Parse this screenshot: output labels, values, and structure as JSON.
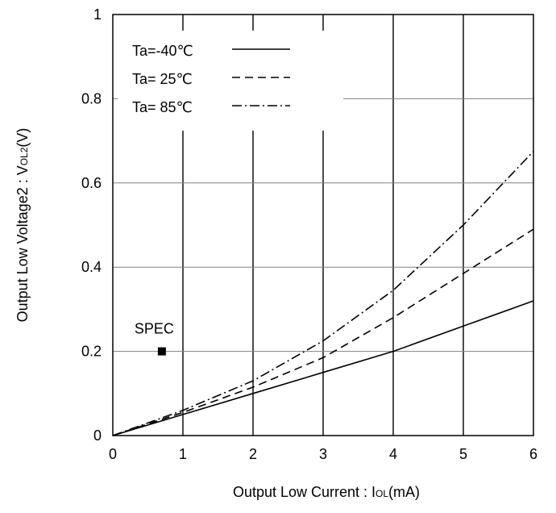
{
  "chart_data": {
    "type": "line",
    "xlabel": "Output Low Current : I",
    "xlabel_sub": "OL",
    "xlabel_unit": "(mA)",
    "ylabel": "Output Low Voltage2 : V",
    "ylabel_sub": "OL2",
    "ylabel_unit": "(V)",
    "xlim": [
      0,
      6
    ],
    "ylim": [
      0,
      1
    ],
    "x_ticks": [
      0,
      1,
      2,
      3,
      4,
      5,
      6
    ],
    "y_ticks": [
      0,
      0.2,
      0.4,
      0.6,
      0.8,
      1
    ],
    "x_tick_labels": [
      "0",
      "1",
      "2",
      "3",
      "4",
      "5",
      "6"
    ],
    "y_tick_labels": [
      "0",
      "0.2",
      "0.4",
      "0.6",
      "0.8",
      "1"
    ],
    "grid": true,
    "legend_position": "top-left",
    "series": [
      {
        "name": "Ta=-40℃",
        "dash": "solid",
        "x": [
          0,
          1,
          2,
          3,
          4,
          5,
          6
        ],
        "y": [
          0,
          0.05,
          0.1,
          0.15,
          0.2,
          0.26,
          0.32
        ]
      },
      {
        "name": "Ta= 25℃",
        "dash": "dashed",
        "x": [
          0,
          1,
          2,
          3,
          4,
          5,
          6
        ],
        "y": [
          0,
          0.055,
          0.115,
          0.185,
          0.28,
          0.385,
          0.49
        ]
      },
      {
        "name": "Ta= 85℃",
        "dash": "dashdot",
        "x": [
          0,
          1,
          2,
          3,
          4,
          5,
          6
        ],
        "y": [
          0,
          0.06,
          0.13,
          0.225,
          0.345,
          0.5,
          0.675
        ]
      }
    ],
    "annotations": [
      {
        "label": "SPEC",
        "x": 0.7,
        "y": 0.2,
        "marker": "square"
      }
    ]
  }
}
